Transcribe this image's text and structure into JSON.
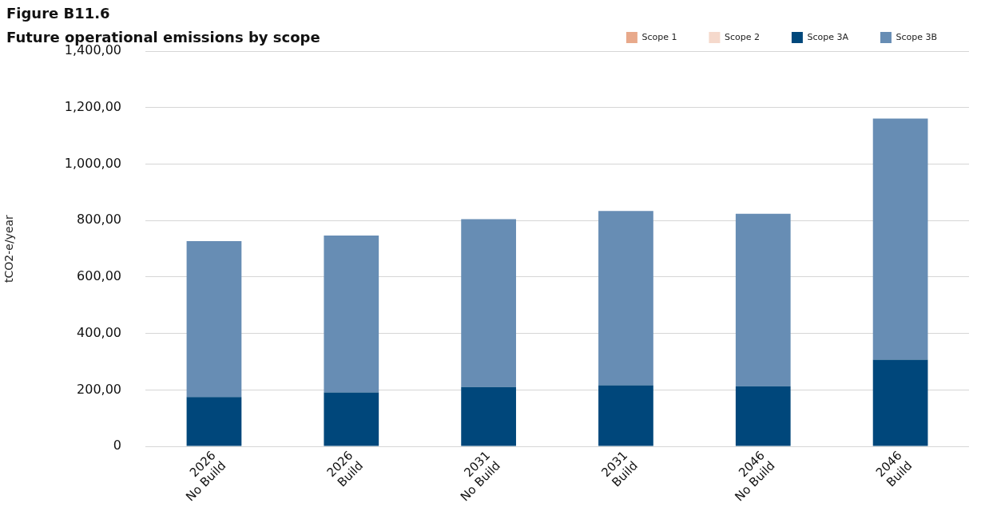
{
  "chart_data": {
    "type": "bar",
    "title": "Figure B11.6",
    "subtitle": "Future operational emissions by scope",
    "ylabel": "tCO2-e/year",
    "categories": [
      "2026\nNo Build",
      "2026\nBuild",
      "2031\nNo Build",
      "2031\nBuild",
      "2046\nNo Build",
      "2046\nBuild"
    ],
    "stacked": true,
    "series": [
      {
        "name": "Scope 1",
        "color": "#e8a98b",
        "values": [
          0,
          0,
          0,
          0,
          0,
          0
        ]
      },
      {
        "name": "Scope 2",
        "color": "#f5d9cc",
        "values": [
          0,
          0,
          0,
          0,
          0,
          0
        ]
      },
      {
        "name": "Scope 3A",
        "color": "#00477b",
        "values": [
          175,
          191,
          210,
          217,
          213,
          307
        ]
      },
      {
        "name": "Scope 3B",
        "color": "#678db4",
        "values": [
          552,
          556,
          595,
          617,
          611,
          854
        ]
      }
    ],
    "ylim": [
      0,
      1400
    ],
    "yticks": [
      {
        "value": 0,
        "label": "0"
      },
      {
        "value": 200,
        "label": "200,00"
      },
      {
        "value": 400,
        "label": "400,00"
      },
      {
        "value": 600,
        "label": "600,00"
      },
      {
        "value": 800,
        "label": "800,00"
      },
      {
        "value": 1000,
        "label": "1,000,00"
      },
      {
        "value": 1200,
        "label": "1,200,00"
      },
      {
        "value": 1400,
        "label": "1,400,00"
      }
    ],
    "grid": "y",
    "legend": "top right"
  }
}
